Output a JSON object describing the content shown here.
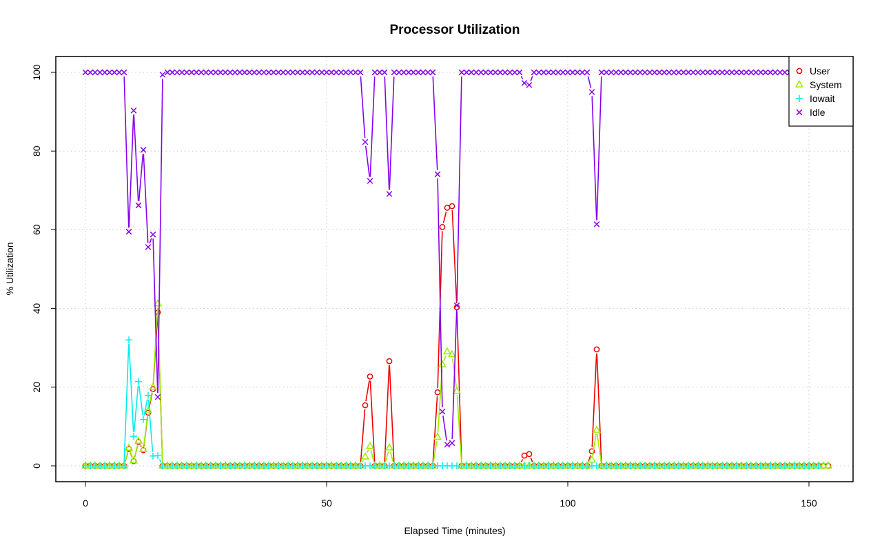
{
  "chart_data": {
    "type": "line",
    "title": "Processor Utilization",
    "xlabel": "Elapsed Time (minutes)",
    "ylabel": "% Utilization",
    "xlim": [
      0,
      153
    ],
    "ylim": [
      0,
      100
    ],
    "x_ticks": [
      0,
      50,
      100,
      150
    ],
    "y_ticks": [
      0,
      20,
      40,
      60,
      80,
      100
    ],
    "grid": true,
    "legend_position": "top-right",
    "x_step": 1,
    "series": [
      {
        "name": "User",
        "color": "#ee0000",
        "marker": "circle",
        "values": [
          0,
          0,
          0,
          0,
          0,
          0,
          0,
          0,
          0,
          4.3,
          1.2,
          6.1,
          4,
          13.5,
          19.5,
          39,
          0,
          0,
          0,
          0,
          0,
          0,
          0,
          0,
          0,
          0,
          0,
          0,
          0,
          0,
          0,
          0,
          0,
          0,
          0,
          0,
          0,
          0,
          0,
          0,
          0,
          0,
          0,
          0,
          0,
          0,
          0,
          0,
          0,
          0,
          0,
          0,
          0,
          0,
          0,
          0,
          0,
          0,
          15.4,
          22.7,
          0,
          0,
          0,
          26.6,
          0,
          0,
          0,
          0,
          0,
          0,
          0,
          0,
          0,
          18.7,
          60.7,
          65.6,
          66,
          40.3,
          0,
          0,
          0,
          0,
          0,
          0,
          0,
          0,
          0,
          0,
          0,
          0,
          0,
          2.6,
          3,
          0,
          0,
          0,
          0,
          0,
          0,
          0,
          0,
          0,
          0,
          0,
          0,
          3.7,
          29.6,
          0,
          0,
          0,
          0,
          0,
          0,
          0,
          0,
          0,
          0,
          0,
          0,
          0,
          0,
          0,
          0,
          0,
          0,
          0,
          0,
          0,
          0,
          0,
          0,
          0,
          0,
          0,
          0,
          0,
          0,
          0,
          0,
          0,
          0,
          0,
          0,
          0,
          0,
          0,
          0,
          0,
          0,
          0,
          0,
          0,
          0,
          0,
          0
        ]
      },
      {
        "name": "System",
        "color": "#99ee00",
        "marker": "triangle",
        "values": [
          0,
          0,
          0,
          0,
          0,
          0,
          0,
          0,
          0,
          4.5,
          1.3,
          6.3,
          4.2,
          14,
          20,
          41.2,
          0,
          0,
          0,
          0,
          0,
          0,
          0,
          0,
          0,
          0,
          0,
          0,
          0,
          0,
          0,
          0,
          0,
          0,
          0,
          0,
          0,
          0,
          0,
          0,
          0,
          0,
          0,
          0,
          0,
          0,
          0,
          0,
          0,
          0,
          0,
          0,
          0,
          0,
          0,
          0,
          0,
          0,
          2.3,
          5,
          0,
          0,
          0,
          4.6,
          0,
          0,
          0,
          0,
          0,
          0,
          0,
          0,
          0,
          7.3,
          25.7,
          29,
          28.3,
          19,
          0,
          0,
          0,
          0,
          0,
          0,
          0,
          0,
          0,
          0,
          0,
          0,
          0,
          0,
          0,
          0,
          0,
          0,
          0,
          0,
          0,
          0,
          0,
          0,
          0,
          0,
          0,
          1.5,
          9.1,
          0,
          0,
          0,
          0,
          0,
          0,
          0,
          0,
          0,
          0,
          0,
          0,
          0,
          0,
          0,
          0,
          0,
          0,
          0,
          0,
          0,
          0,
          0,
          0,
          0,
          0,
          0,
          0,
          0,
          0,
          0,
          0,
          0,
          0,
          0,
          0,
          0,
          0,
          0,
          0,
          0,
          0,
          0,
          0,
          0,
          0,
          0,
          0
        ]
      },
      {
        "name": "Iowait",
        "color": "#00eeee",
        "marker": "plus",
        "values": [
          0,
          0,
          0,
          0,
          0,
          0,
          0,
          0,
          0,
          32,
          7.5,
          21.4,
          11.8,
          17.9,
          2.5,
          2.6,
          0,
          0,
          0,
          0,
          0,
          0,
          0,
          0,
          0,
          0,
          0,
          0,
          0,
          0,
          0,
          0,
          0,
          0,
          0,
          0,
          0,
          0,
          0,
          0,
          0,
          0,
          0,
          0,
          0,
          0,
          0,
          0,
          0,
          0,
          0,
          0,
          0,
          0,
          0,
          0,
          0,
          0,
          0,
          0,
          0,
          0,
          0,
          0,
          0,
          0,
          0,
          0,
          0,
          0,
          0,
          0,
          0,
          0,
          0,
          0,
          0,
          0,
          0,
          0,
          0,
          0,
          0,
          0,
          0,
          0,
          0,
          0,
          0,
          0,
          0,
          0,
          0,
          0,
          0,
          0,
          0,
          0,
          0,
          0,
          0,
          0,
          0,
          0,
          0,
          0,
          0,
          0,
          0,
          0,
          0,
          0,
          0,
          0,
          0,
          0,
          0,
          0,
          0,
          0,
          0,
          0,
          0,
          0,
          0,
          0,
          0,
          0,
          0,
          0,
          0,
          0,
          0,
          0,
          0,
          0,
          0,
          0,
          0,
          0,
          0,
          0,
          0,
          0,
          0,
          0,
          0,
          0,
          0,
          0,
          0,
          0,
          0
        ]
      },
      {
        "name": "Idle",
        "color": "#8800ee",
        "marker": "x",
        "values": [
          100,
          100,
          100,
          100,
          100,
          100,
          100,
          100,
          100,
          59.5,
          90.3,
          66.2,
          80.3,
          55.6,
          58.8,
          17.5,
          99.4,
          100,
          100,
          100,
          100,
          100,
          100,
          100,
          100,
          100,
          100,
          100,
          100,
          100,
          100,
          100,
          100,
          100,
          100,
          100,
          100,
          100,
          100,
          100,
          100,
          100,
          100,
          100,
          100,
          100,
          100,
          100,
          100,
          100,
          100,
          100,
          100,
          100,
          100,
          100,
          100,
          100,
          82.3,
          72.4,
          100,
          100,
          100,
          69.1,
          100,
          100,
          100,
          100,
          100,
          100,
          100,
          100,
          100,
          74.1,
          13.8,
          5.4,
          5.8,
          40.8,
          100,
          100,
          100,
          100,
          100,
          100,
          100,
          100,
          100,
          100,
          100,
          100,
          100,
          97.3,
          96.8,
          100,
          100,
          100,
          100,
          100,
          100,
          100,
          100,
          100,
          100,
          100,
          100,
          95,
          61.4,
          100,
          100,
          100,
          100,
          100,
          100,
          100,
          100,
          100,
          100,
          100,
          100,
          100,
          100,
          100,
          100,
          100,
          100,
          100,
          100,
          100,
          100,
          100,
          100,
          100,
          100,
          100,
          100,
          100,
          100,
          100,
          100,
          100,
          100,
          100,
          100,
          100,
          100,
          100,
          100,
          100,
          100,
          100,
          100,
          100,
          100,
          100,
          100
        ]
      }
    ]
  }
}
